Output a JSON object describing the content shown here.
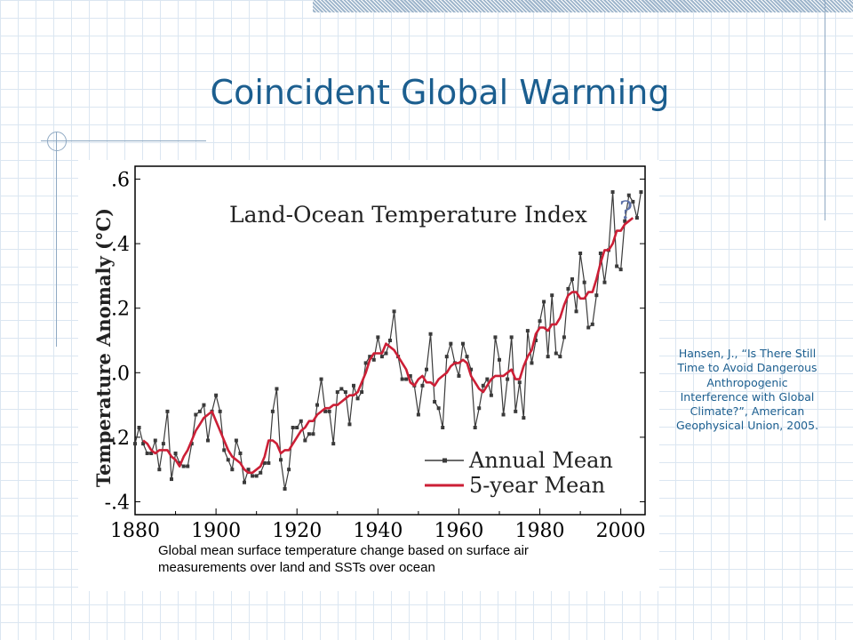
{
  "slide": {
    "title": "Coincident Global Warming",
    "citation": "Hansen, J., “Is There Still Time to Avoid Dangerous Anthropogenic Interference with Global Climate?”, American Geophysical Union, 2005.",
    "caption": "Global mean surface temperature change based on surface air measurements over land and SSTs over ocean"
  },
  "colors": {
    "title": "#1b5e8f",
    "annual_series": "#3a3a3a",
    "mean_series": "#cc1f36",
    "question_mark": "#5b6fa6"
  },
  "chart_data": {
    "type": "line",
    "title": "Land-Ocean Temperature Index",
    "ylabel": "Temperature Anomaly (°C)",
    "xlabel": "",
    "xlim": [
      1880,
      2006
    ],
    "ylim": [
      -0.44,
      0.64
    ],
    "x_ticks": [
      1880,
      1900,
      1920,
      1940,
      1960,
      1980,
      2000
    ],
    "y_ticks": [
      {
        "value": 0.6,
        "label": ".6"
      },
      {
        "value": 0.4,
        "label": ".4"
      },
      {
        "value": 0.2,
        "label": ".2"
      },
      {
        "value": 0.0,
        "label": ".0"
      },
      {
        "value": -0.2,
        "label": "-.2"
      },
      {
        "value": -0.4,
        "label": "-.4"
      }
    ],
    "grid": false,
    "legend_position": "bottom-right",
    "annotation": "?",
    "series": [
      {
        "name": "Annual Mean",
        "x": [
          1880,
          1881,
          1882,
          1883,
          1884,
          1885,
          1886,
          1887,
          1888,
          1889,
          1890,
          1891,
          1892,
          1893,
          1894,
          1895,
          1896,
          1897,
          1898,
          1899,
          1900,
          1901,
          1902,
          1903,
          1904,
          1905,
          1906,
          1907,
          1908,
          1909,
          1910,
          1911,
          1912,
          1913,
          1914,
          1915,
          1916,
          1917,
          1918,
          1919,
          1920,
          1921,
          1922,
          1923,
          1924,
          1925,
          1926,
          1927,
          1928,
          1929,
          1930,
          1931,
          1932,
          1933,
          1934,
          1935,
          1936,
          1937,
          1938,
          1939,
          1940,
          1941,
          1942,
          1943,
          1944,
          1945,
          1946,
          1947,
          1948,
          1949,
          1950,
          1951,
          1952,
          1953,
          1954,
          1955,
          1956,
          1957,
          1958,
          1959,
          1960,
          1961,
          1962,
          1963,
          1964,
          1965,
          1966,
          1967,
          1968,
          1969,
          1970,
          1971,
          1972,
          1973,
          1974,
          1975,
          1976,
          1977,
          1978,
          1979,
          1980,
          1981,
          1982,
          1983,
          1984,
          1985,
          1986,
          1987,
          1988,
          1989,
          1990,
          1991,
          1992,
          1993,
          1994,
          1995,
          1996,
          1997,
          1998,
          1999,
          2000,
          2001,
          2002,
          2003,
          2004,
          2005
        ],
        "values": [
          -0.22,
          -0.17,
          -0.22,
          -0.25,
          -0.25,
          -0.21,
          -0.3,
          -0.22,
          -0.12,
          -0.33,
          -0.25,
          -0.28,
          -0.29,
          -0.29,
          -0.22,
          -0.13,
          -0.12,
          -0.1,
          -0.21,
          -0.12,
          -0.07,
          -0.12,
          -0.24,
          -0.27,
          -0.3,
          -0.21,
          -0.25,
          -0.34,
          -0.3,
          -0.32,
          -0.32,
          -0.31,
          -0.28,
          -0.28,
          -0.12,
          -0.05,
          -0.27,
          -0.36,
          -0.3,
          -0.17,
          -0.17,
          -0.15,
          -0.21,
          -0.19,
          -0.19,
          -0.1,
          -0.02,
          -0.12,
          -0.12,
          -0.22,
          -0.06,
          -0.05,
          -0.06,
          -0.16,
          -0.04,
          -0.08,
          -0.06,
          0.03,
          0.05,
          0.04,
          0.11,
          0.05,
          0.06,
          0.1,
          0.19,
          0.05,
          -0.02,
          -0.02,
          -0.01,
          -0.04,
          -0.13,
          -0.04,
          0.01,
          0.12,
          -0.09,
          -0.11,
          -0.17,
          0.05,
          0.09,
          0.03,
          -0.01,
          0.09,
          0.05,
          0.01,
          -0.17,
          -0.11,
          -0.04,
          -0.02,
          -0.07,
          0.11,
          0.04,
          -0.13,
          -0.02,
          0.11,
          -0.12,
          -0.03,
          -0.14,
          0.13,
          0.03,
          0.1,
          0.16,
          0.22,
          0.05,
          0.24,
          0.06,
          0.05,
          0.11,
          0.26,
          0.29,
          0.19,
          0.37,
          0.28,
          0.14,
          0.15,
          0.24,
          0.37,
          0.28,
          0.38,
          0.56,
          0.33,
          0.32,
          0.47,
          0.55,
          0.53,
          0.48,
          0.56
        ]
      },
      {
        "name": "5-year Mean",
        "x": [
          1882,
          1883,
          1884,
          1885,
          1886,
          1887,
          1888,
          1889,
          1890,
          1891,
          1892,
          1893,
          1894,
          1895,
          1896,
          1897,
          1898,
          1899,
          1900,
          1901,
          1902,
          1903,
          1904,
          1905,
          1906,
          1907,
          1908,
          1909,
          1910,
          1911,
          1912,
          1913,
          1914,
          1915,
          1916,
          1917,
          1918,
          1919,
          1920,
          1921,
          1922,
          1923,
          1924,
          1925,
          1926,
          1927,
          1928,
          1929,
          1930,
          1931,
          1932,
          1933,
          1934,
          1935,
          1936,
          1937,
          1938,
          1939,
          1940,
          1941,
          1942,
          1943,
          1944,
          1945,
          1946,
          1947,
          1948,
          1949,
          1950,
          1951,
          1952,
          1953,
          1954,
          1955,
          1956,
          1957,
          1958,
          1959,
          1960,
          1961,
          1962,
          1963,
          1964,
          1965,
          1966,
          1967,
          1968,
          1969,
          1970,
          1971,
          1972,
          1973,
          1974,
          1975,
          1976,
          1977,
          1978,
          1979,
          1980,
          1981,
          1982,
          1983,
          1984,
          1985,
          1986,
          1987,
          1988,
          1989,
          1990,
          1991,
          1992,
          1993,
          1994,
          1995,
          1996,
          1997,
          1998,
          1999,
          2000,
          2001,
          2002,
          2003
        ],
        "values": [
          -0.21,
          -0.22,
          -0.24,
          -0.25,
          -0.24,
          -0.24,
          -0.24,
          -0.26,
          -0.27,
          -0.29,
          -0.26,
          -0.24,
          -0.21,
          -0.18,
          -0.16,
          -0.14,
          -0.13,
          -0.12,
          -0.15,
          -0.18,
          -0.21,
          -0.24,
          -0.26,
          -0.27,
          -0.28,
          -0.3,
          -0.31,
          -0.31,
          -0.3,
          -0.29,
          -0.26,
          -0.21,
          -0.21,
          -0.22,
          -0.25,
          -0.24,
          -0.24,
          -0.22,
          -0.2,
          -0.18,
          -0.17,
          -0.15,
          -0.15,
          -0.13,
          -0.12,
          -0.11,
          -0.11,
          -0.1,
          -0.1,
          -0.09,
          -0.08,
          -0.07,
          -0.07,
          -0.06,
          -0.03,
          0.0,
          0.04,
          0.06,
          0.06,
          0.06,
          0.09,
          0.08,
          0.07,
          0.05,
          0.03,
          0.01,
          -0.03,
          -0.04,
          -0.02,
          -0.01,
          -0.03,
          -0.03,
          -0.04,
          -0.02,
          -0.01,
          0.0,
          0.02,
          0.03,
          0.03,
          0.04,
          0.03,
          -0.01,
          -0.03,
          -0.05,
          -0.06,
          -0.04,
          -0.02,
          -0.01,
          -0.01,
          -0.01,
          0.0,
          0.01,
          -0.02,
          -0.02,
          0.02,
          0.05,
          0.07,
          0.12,
          0.14,
          0.14,
          0.13,
          0.15,
          0.15,
          0.17,
          0.21,
          0.24,
          0.25,
          0.25,
          0.23,
          0.23,
          0.25,
          0.25,
          0.29,
          0.34,
          0.38,
          0.38,
          0.4,
          0.44,
          0.44,
          0.46,
          0.47,
          0.48
        ]
      }
    ]
  }
}
